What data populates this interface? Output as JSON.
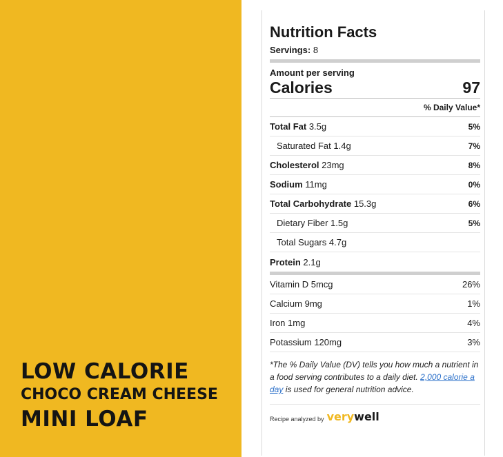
{
  "promo": {
    "line1": "LOW CALORIE",
    "line2": "CHOCO CREAM CHEESE",
    "line3": "MINI LOAF"
  },
  "label": {
    "title": "Nutrition Facts",
    "servings_label": "Servings:",
    "servings_value": "8",
    "amount_per_serving": "Amount per serving",
    "calories_label": "Calories",
    "calories_value": "97",
    "dv_header": "% Daily Value*",
    "nutrients": [
      {
        "name": "Total Fat",
        "amount": "3.5g",
        "pct": "5%"
      },
      {
        "name": "Saturated Fat",
        "amount": "1.4g",
        "pct": "7%"
      },
      {
        "name": "Cholesterol",
        "amount": "23mg",
        "pct": "8%"
      },
      {
        "name": "Sodium",
        "amount": "11mg",
        "pct": "0%"
      },
      {
        "name": "Total Carbohydrate",
        "amount": "15.3g",
        "pct": "6%"
      },
      {
        "name": "Dietary Fiber",
        "amount": "1.5g",
        "pct": "5%"
      },
      {
        "name": "Total Sugars",
        "amount": "4.7g",
        "pct": ""
      },
      {
        "name": "Protein",
        "amount": "2.1g",
        "pct": ""
      }
    ],
    "vitamins": [
      {
        "name": "Vitamin D",
        "amount": "5mcg",
        "pct": "26%"
      },
      {
        "name": "Calcium",
        "amount": "9mg",
        "pct": "1%"
      },
      {
        "name": "Iron",
        "amount": "1mg",
        "pct": "4%"
      },
      {
        "name": "Potassium",
        "amount": "120mg",
        "pct": "3%"
      }
    ],
    "footnote_part1": "*The % Daily Value (DV) tells you how much a nutrient in a food serving contributes to a daily diet.",
    "footnote_link": "2,000 calorie a day",
    "footnote_part2": "is used for general nutrition advice.",
    "credit_text": "Recipe analyzed by",
    "logo_very": "very",
    "logo_well": "well"
  },
  "colors": {
    "accent_yellow": "#f0b821",
    "link_blue": "#2a6fc9"
  }
}
